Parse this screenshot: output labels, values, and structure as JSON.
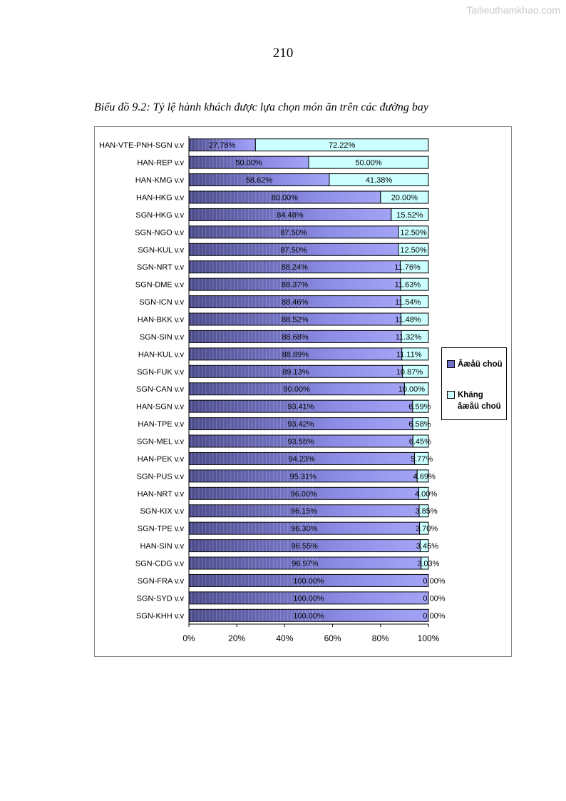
{
  "watermark": "Tailieuthamkhao.com",
  "page_number": "210",
  "caption": "Biểu đồ 9.2: Tỷ lệ hành khách được lựa chọn món ăn trên các đường bay",
  "colors": {
    "series1": "#9a9af0",
    "series1_dark": "#4d4d8c",
    "series2": "#ccffff",
    "axis": "#000000"
  },
  "chart_data": {
    "type": "bar",
    "orientation": "horizontal",
    "stacked": "percent",
    "title": "Biểu đồ 9.2: Tỷ lệ hành khách được lựa chọn món ăn trên các đường bay",
    "xlim": [
      0,
      100
    ],
    "x_ticks": [
      "0%",
      "20%",
      "40%",
      "60%",
      "80%",
      "100%"
    ],
    "legend_position": "right",
    "categories": [
      "HAN-VTE-PNH-SGN v.v",
      "HAN-REP v.v",
      "HAN-KMG v.v",
      "HAN-HKG v.v",
      "SGN-HKG v.v",
      "SGN-NGO v.v",
      "SGN-KUL v.v",
      "SGN-NRT v.v",
      "SGN-DME v.v",
      "SGN-ICN v.v",
      "HAN-BKK v.v",
      "SGN-SIN v.v",
      "HAN-KUL v.v",
      "SGN-FUK v.v",
      "SGN-CAN v.v",
      "HAN-SGN v.v",
      "HAN-TPE v.v",
      "SGN-MEL v.v",
      "HAN-PEK v.v",
      "SGN-PUS v.v",
      "HAN-NRT v.v",
      "SGN-KIX v.v",
      "SGN-TPE v.v",
      "HAN-SIN v.v",
      "SGN-CDG v.v",
      "SGN-FRA v.v",
      "SGN-SYD v.v",
      "SGN-KHH v.v"
    ],
    "series": [
      {
        "name": "Âæåü choü",
        "values": [
          27.78,
          50.0,
          58.62,
          80.0,
          84.48,
          87.5,
          87.5,
          88.24,
          88.37,
          88.46,
          88.52,
          88.68,
          88.89,
          89.13,
          90.0,
          93.41,
          93.42,
          93.55,
          94.23,
          95.31,
          96.0,
          96.15,
          96.3,
          96.55,
          96.97,
          100.0,
          100.0,
          100.0
        ],
        "labels": [
          "27.78%",
          "50.00%",
          "58.62%",
          "80.00%",
          "84.48%",
          "87.50%",
          "87.50%",
          "88.24%",
          "88.37%",
          "88.46%",
          "88.52%",
          "88.68%",
          "88.89%",
          "89.13%",
          "90.00%",
          "93.41%",
          "93.42%",
          "93.55%",
          "94.23%",
          "95.31%",
          "96.00%",
          "96.15%",
          "96.30%",
          "96.55%",
          "96.97%",
          "100.00%",
          "100.00%",
          "100.00%"
        ]
      },
      {
        "name": "Khäng âæåü choü",
        "values": [
          72.22,
          50.0,
          41.38,
          20.0,
          15.52,
          12.5,
          12.5,
          11.76,
          11.63,
          11.54,
          11.48,
          11.32,
          11.11,
          10.87,
          10.0,
          6.59,
          6.58,
          6.45,
          5.77,
          4.69,
          4.0,
          3.85,
          3.7,
          3.45,
          3.03,
          0.0,
          0.0,
          0.0
        ],
        "labels": [
          "72.22%",
          "50.00%",
          "41.38%",
          "20.00%",
          "15.52%",
          "12.50%",
          "12.50%",
          "11.76%",
          "11.63%",
          "11.54%",
          "11.48%",
          "11.32%",
          "11.11%",
          "10.87%",
          "10.00%",
          "6.59%",
          "6.58%",
          "6.45%",
          "5.77%",
          "4.69%",
          "4.00%",
          "3.85%",
          "3.70%",
          "3.45%",
          "3.03%",
          "0.00%",
          "0.00%",
          "0.00%"
        ]
      }
    ]
  },
  "legend": {
    "items": [
      {
        "label": "Âæåü choü"
      },
      {
        "label": "Khäng âæåü choü"
      }
    ]
  }
}
